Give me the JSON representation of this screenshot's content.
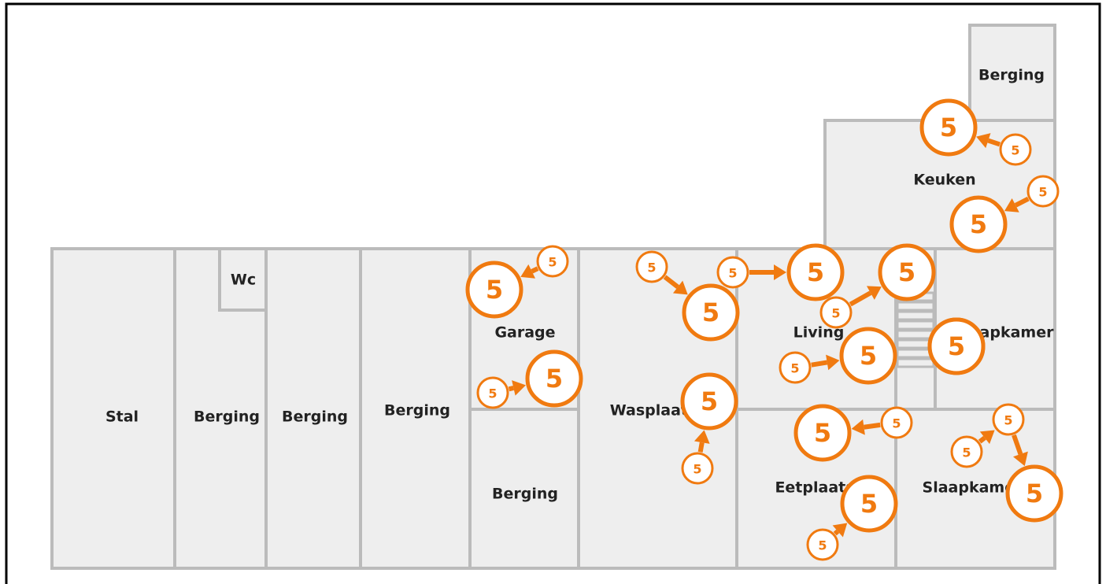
{
  "rooms": [
    "Stal",
    "Berging",
    "Wc",
    "Berging",
    "Berging",
    "Garage",
    "Berging",
    "Wasplaats",
    "Living",
    "Slaapkamer",
    "Eetplaats",
    "Slaapkamer",
    "Keuken",
    "Berging"
  ],
  "markers": [
    "5",
    "5",
    "5",
    "5",
    "5",
    "5",
    "5",
    "5",
    "5",
    "5",
    "5",
    "5",
    "5",
    "5",
    "5",
    "5",
    "5",
    "5",
    "5",
    "5",
    "5",
    "5",
    "5",
    "5",
    "5",
    "5",
    "5"
  ]
}
